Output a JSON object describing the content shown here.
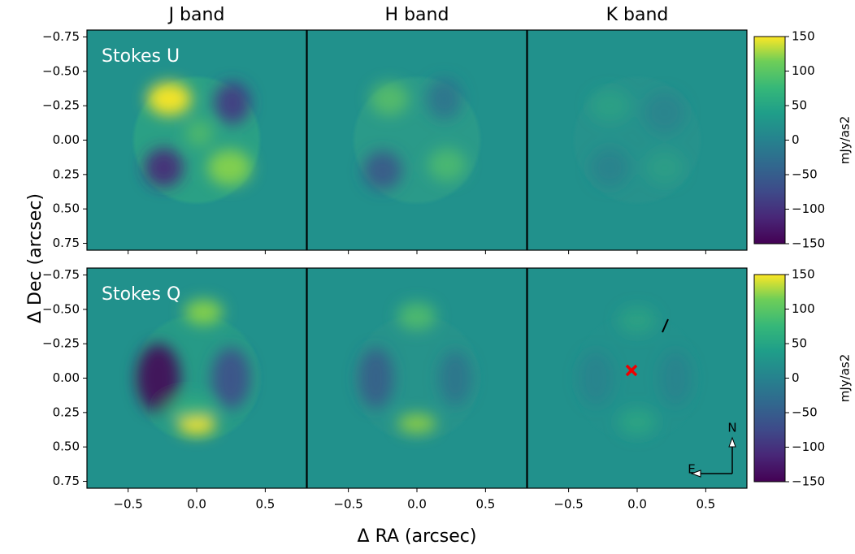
{
  "chart_data": {
    "type": "image",
    "columns": [
      "J band",
      "H band",
      "K band"
    ],
    "rows": [
      "Stokes U",
      "Stokes Q"
    ],
    "xlabel": "Δ RA (arcsec)",
    "ylabel": "Δ Dec (arcsec)",
    "xlim": [
      -0.8,
      0.8
    ],
    "xticks": [
      {
        "value": -0.5,
        "label": "−0.5"
      },
      {
        "value": 0,
        "label": "0.0"
      },
      {
        "value": 0.5,
        "label": "0.5"
      }
    ],
    "ylim": [
      -0.8,
      0.8
    ],
    "y_inverted": true,
    "yticks": [
      {
        "value": -0.75,
        "label": "−0.75"
      },
      {
        "value": -0.5,
        "label": "−0.50"
      },
      {
        "value": -0.25,
        "label": "−0.25"
      },
      {
        "value": 0,
        "label": "0.00"
      },
      {
        "value": 0.25,
        "label": "0.25"
      },
      {
        "value": 0.5,
        "label": "0.50"
      },
      {
        "value": 0.75,
        "label": "0.75"
      }
    ],
    "colormap": "viridis",
    "clim": [
      -150,
      150
    ],
    "cticks": [
      {
        "value": -150,
        "label": "−150"
      },
      {
        "value": -100,
        "label": "−100"
      },
      {
        "value": -50,
        "label": "−50"
      },
      0,
      50,
      100,
      150
    ],
    "colorbar_label": "mJy/as2",
    "compass": {
      "north": "N",
      "east": "E"
    }
  }
}
